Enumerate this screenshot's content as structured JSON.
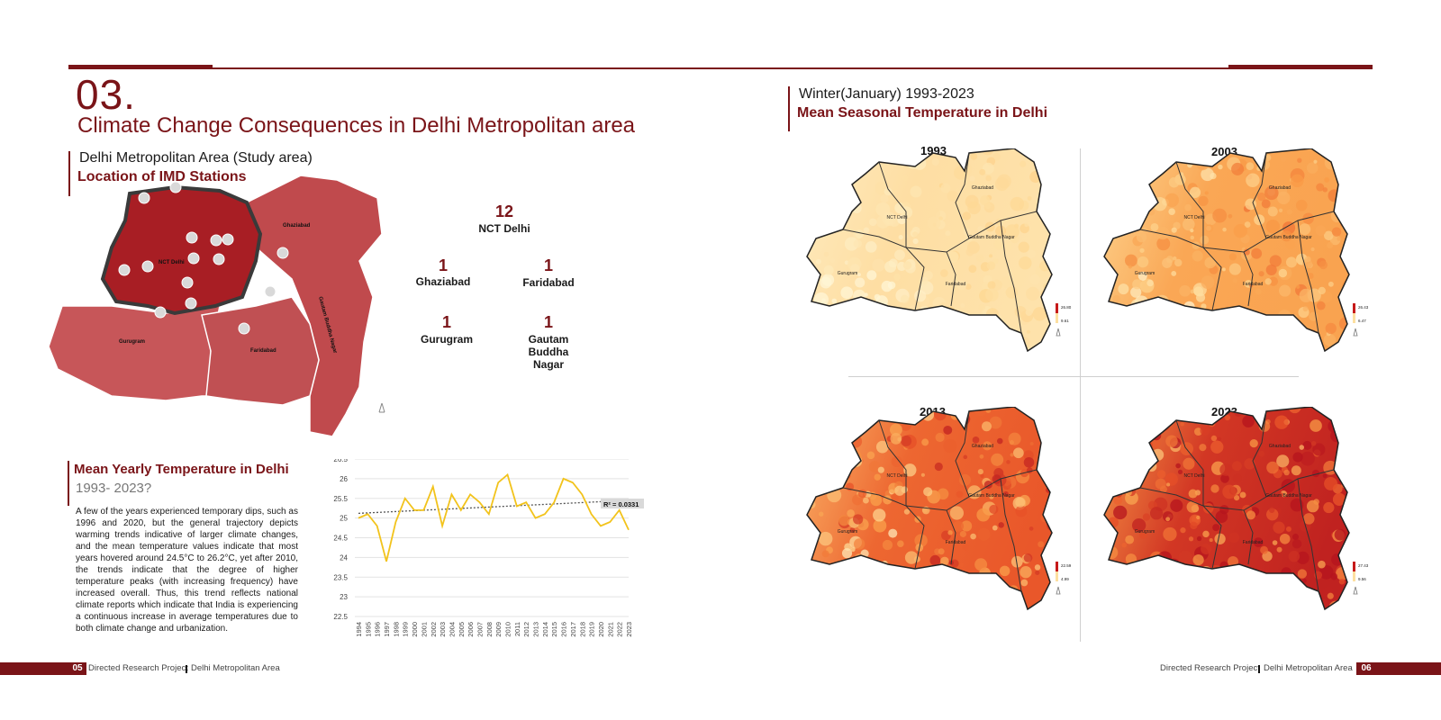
{
  "section": {
    "number": "03.",
    "title": "Climate Change Consequences in Delhi Metropolitan area"
  },
  "study_area": {
    "subtitle": "Delhi Metropolitan Area (Study area)",
    "heading": "Location of IMD Stations",
    "region_labels": [
      "NCT Delhi",
      "Ghaziabad",
      "Gurugram",
      "Faridabad",
      "Gautam Buddha Nagar"
    ],
    "stations": [
      {
        "count": "12",
        "name": "NCT Delhi"
      },
      {
        "count": "1",
        "name": "Ghaziabad"
      },
      {
        "count": "1",
        "name": "Faridabad"
      },
      {
        "count": "1",
        "name": "Gurugram"
      },
      {
        "count": "1",
        "name": "Gautam Buddha Nagar"
      }
    ]
  },
  "yearly": {
    "heading": "Mean Yearly Temperature in Delhi",
    "subheading": "1993- 2023?",
    "paragraph": "A few of the years experienced temporary dips, such as 1996 and 2020, but the general trajectory depicts warming trends indicative of larger climate changes, and the mean temperature values indicate that most years hovered around 24.5°C to 26.2°C, yet after 2010, the trends indicate that the degree of higher temperature peaks (with increasing frequency) have increased overall. Thus, this trend reflects national climate reports which indicate that India is experiencing a continuous increase in average temperatures due to both climate change and urbanization."
  },
  "chart_data": {
    "type": "line",
    "x": [
      "1994",
      "1995",
      "1996",
      "1997",
      "1998",
      "1999",
      "2000",
      "2001",
      "2002",
      "2003",
      "2004",
      "2005",
      "2006",
      "2007",
      "2008",
      "2009",
      "2010",
      "2011",
      "2012",
      "2013",
      "2014",
      "2015",
      "2016",
      "2017",
      "2018",
      "2019",
      "2020",
      "2021",
      "2022",
      "2023"
    ],
    "series": [
      {
        "values": [
          25.0,
          25.1,
          24.8,
          23.9,
          24.9,
          25.5,
          25.2,
          25.2,
          25.8,
          24.8,
          25.6,
          25.2,
          25.6,
          25.4,
          25.1,
          25.9,
          26.1,
          25.3,
          25.4,
          25.0,
          25.1,
          25.4,
          26.0,
          25.9,
          25.6,
          25.1,
          24.8,
          24.9,
          25.2,
          24.7
        ]
      }
    ],
    "trendline": {
      "r2_label": "R² = 0.0331",
      "start": 25.12,
      "end": 25.45
    },
    "yticks": [
      "26.5",
      "26",
      "25.5",
      "25",
      "24.5",
      "24",
      "23.5",
      "23",
      "22.5"
    ],
    "ylim": [
      22.5,
      26.5
    ],
    "colors": {
      "line": "#f2c31c",
      "trend": "#555555"
    }
  },
  "seasonal": {
    "subtitle": "Winter(January) 1993-2023",
    "heading": "Mean Seasonal Temperature in Delhi",
    "maps": [
      {
        "year": "1993",
        "legend_max": "26.80",
        "legend_min": "9.61",
        "intensity": 0.15
      },
      {
        "year": "2003",
        "legend_max": "26.43",
        "legend_min": "6.47",
        "intensity": 0.45
      },
      {
        "year": "2013",
        "legend_max": "22.59",
        "legend_min": "4.99",
        "intensity": 0.7
      },
      {
        "year": "2023",
        "legend_max": "27.43",
        "legend_min": "9.56",
        "intensity": 0.9
      }
    ],
    "district_labels": [
      "NCT Delhi",
      "Ghaziabad",
      "Gurugram",
      "Faridabad",
      "Gautam Buddha Nagar"
    ]
  },
  "footer": {
    "left_page": "05",
    "left_text": "Directed Research Project",
    "left_text2": "Delhi Metropolitan Area",
    "right_text": "Directed Research Project",
    "right_text2": "Delhi Metropolitan Area",
    "right_page": "06"
  }
}
